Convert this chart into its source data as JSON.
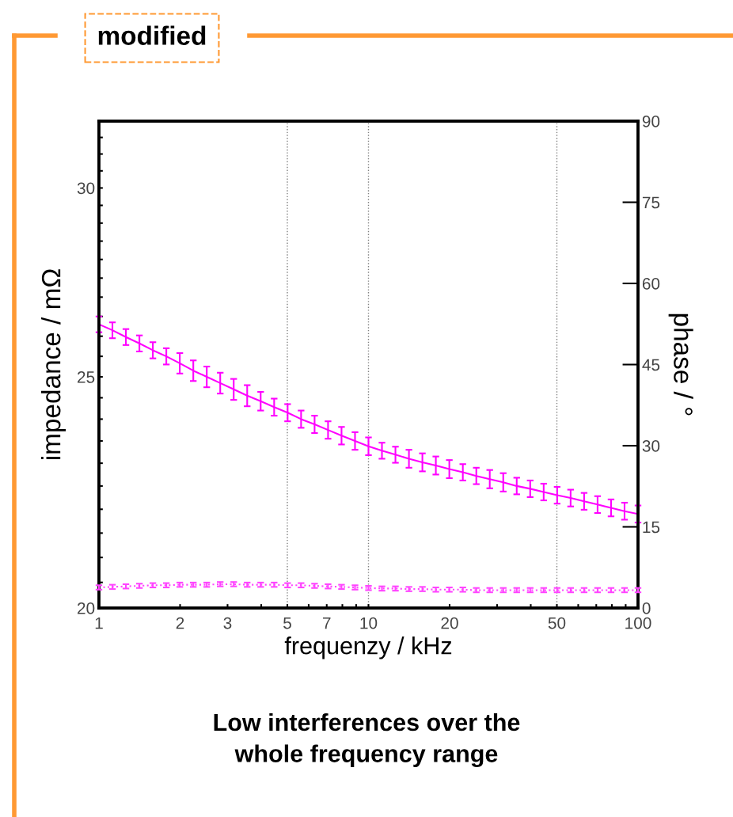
{
  "chart_data": {
    "type": "line",
    "title": "Low interferences over the\nwhole frequency range",
    "xlabel": "frequenzy / kHz",
    "ylabel": "impedance / mΩ",
    "y2label": "phase / °",
    "annotations": [
      "modified"
    ],
    "log": "xy",
    "x": [
      1,
      1.122,
      1.259,
      1.413,
      1.585,
      1.778,
      1.995,
      2.239,
      2.512,
      2.818,
      3.162,
      3.548,
      3.981,
      4.467,
      5.012,
      5.623,
      6.31,
      7.079,
      7.943,
      8.913,
      10,
      11.22,
      12.59,
      14.13,
      15.85,
      17.78,
      19.95,
      22.39,
      25.12,
      28.18,
      31.62,
      35.48,
      39.81,
      44.67,
      50.12,
      56.23,
      63.1,
      70.79,
      79.43,
      89.13,
      100
    ],
    "xlim": [
      1,
      100
    ],
    "xticks": [
      1,
      2,
      3,
      {
        "value": 4,
        "label": null
      },
      5,
      {
        "value": 6,
        "label": null
      },
      7,
      {
        "value": 8,
        "label": null
      },
      {
        "value": 9,
        "label": null
      },
      10,
      20,
      {
        "value": 30,
        "label": null
      },
      {
        "value": 40,
        "label": null
      },
      50,
      {
        "value": 60,
        "label": null
      },
      {
        "value": 70,
        "label": null
      },
      {
        "value": 80,
        "label": null
      },
      {
        "value": 90,
        "label": null
      },
      100
    ],
    "ylim": [
      20,
      32
    ],
    "yticks": [
      20,
      {
        "value": 20.5,
        "label": null
      },
      {
        "value": 21,
        "label": null
      },
      {
        "value": 21.5,
        "label": null
      },
      {
        "value": 22,
        "label": null
      },
      {
        "value": 22.5,
        "label": null
      },
      {
        "value": 23,
        "label": null
      },
      {
        "value": 23.5,
        "label": null
      },
      {
        "value": 24,
        "label": null
      },
      {
        "value": 24.5,
        "label": null
      },
      25,
      {
        "value": 25.5,
        "label": null
      },
      {
        "value": 26,
        "label": null
      },
      {
        "value": 26.5,
        "label": null
      },
      {
        "value": 27,
        "label": null
      },
      {
        "value": 27.5,
        "label": null
      },
      {
        "value": 28,
        "label": null
      },
      {
        "value": 28.5,
        "label": null
      },
      {
        "value": 29,
        "label": null
      },
      {
        "value": 29.5,
        "label": null
      },
      30,
      {
        "value": 30.5,
        "label": null
      },
      {
        "value": 31,
        "label": null
      },
      {
        "value": 31.5,
        "label": null
      }
    ],
    "y2lim": [
      0,
      90
    ],
    "y2ticks": [
      0,
      15,
      30,
      45,
      60,
      75,
      90
    ],
    "ref_lines": [
      {
        "axis": "x",
        "value": 5,
        "label": null,
        "color": "#808080",
        "line_style": "dotted"
      },
      {
        "axis": "x",
        "value": 10,
        "label": null,
        "color": "#808080",
        "line_style": "dotted"
      },
      {
        "axis": "x",
        "value": 50,
        "label": null,
        "color": "#808080",
        "line_style": "dotted"
      }
    ],
    "series": [
      {
        "color": "#ff00ff",
        "line_style": "solid",
        "values": [
          26.3,
          26.15,
          25.98,
          25.82,
          25.65,
          25.5,
          25.33,
          25.15,
          25.0,
          24.85,
          24.7,
          24.55,
          24.42,
          24.28,
          24.15,
          24.0,
          23.88,
          23.75,
          23.62,
          23.5,
          23.38,
          23.28,
          23.19,
          23.1,
          23.02,
          22.95,
          22.87,
          22.8,
          22.72,
          22.65,
          22.58,
          22.5,
          22.44,
          22.37,
          22.3,
          22.24,
          22.17,
          22.1,
          22.03,
          21.96,
          21.9
        ],
        "errors": [
          0.2,
          0.2,
          0.2,
          0.2,
          0.2,
          0.2,
          0.25,
          0.25,
          0.25,
          0.25,
          0.25,
          0.25,
          0.22,
          0.2,
          0.2,
          0.2,
          0.2,
          0.2,
          0.2,
          0.2,
          0.2,
          0.18,
          0.18,
          0.2,
          0.2,
          0.2,
          0.2,
          0.18,
          0.18,
          0.2,
          0.2,
          0.18,
          0.18,
          0.18,
          0.18,
          0.18,
          0.18,
          0.18,
          0.18,
          0.18,
          0.18
        ]
      },
      {
        "color": "#ff44ff",
        "axis": "y2",
        "line_style": "dotted",
        "values": [
          3.8,
          3.9,
          4.0,
          4.1,
          4.2,
          4.2,
          4.3,
          4.3,
          4.3,
          4.4,
          4.4,
          4.3,
          4.3,
          4.3,
          4.2,
          4.2,
          4.1,
          4.0,
          3.9,
          3.8,
          3.7,
          3.6,
          3.6,
          3.5,
          3.5,
          3.4,
          3.4,
          3.4,
          3.3,
          3.3,
          3.3,
          3.3,
          3.3,
          3.3,
          3.3,
          3.3,
          3.3,
          3.3,
          3.3,
          3.3,
          3.3
        ],
        "errors": [
          0.4,
          0.4,
          0.4,
          0.4,
          0.4,
          0.4,
          0.4,
          0.4,
          0.4,
          0.4,
          0.4,
          0.4,
          0.4,
          0.4,
          0.4,
          0.4,
          0.4,
          0.4,
          0.4,
          0.4,
          0.4,
          0.4,
          0.4,
          0.4,
          0.4,
          0.4,
          0.4,
          0.4,
          0.4,
          0.4,
          0.4,
          0.4,
          0.4,
          0.4,
          0.4,
          0.4,
          0.4,
          0.4,
          0.4,
          0.4,
          0.4
        ]
      }
    ]
  }
}
